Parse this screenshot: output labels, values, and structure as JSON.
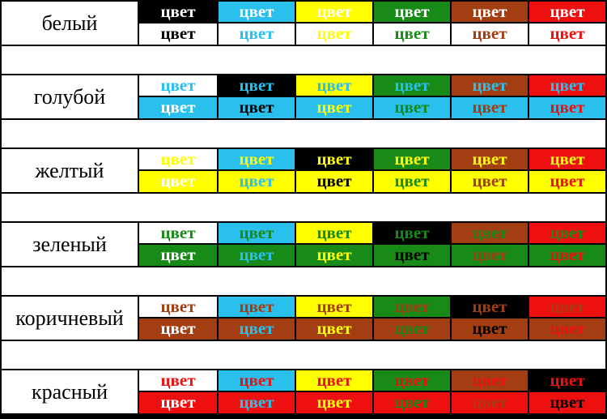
{
  "table": {
    "cell_word": "цвет",
    "palette": {
      "white": "#FFFFFF",
      "black": "#000000",
      "cyan": "#2AC0EE",
      "yellow": "#FFFF00",
      "green": "#178A17",
      "brown": "#A33E12",
      "red": "#EE1010"
    },
    "groups": [
      {
        "label": "белый",
        "color": "white",
        "columns": [
          "black",
          "cyan",
          "yellow",
          "green",
          "brown",
          "red"
        ]
      },
      {
        "label": "голубой",
        "color": "cyan",
        "columns": [
          "white",
          "black",
          "yellow",
          "green",
          "brown",
          "red"
        ]
      },
      {
        "label": "желтый",
        "color": "yellow",
        "columns": [
          "white",
          "cyan",
          "black",
          "green",
          "brown",
          "red"
        ]
      },
      {
        "label": "зеленый",
        "color": "green",
        "columns": [
          "white",
          "cyan",
          "yellow",
          "black",
          "brown",
          "red"
        ]
      },
      {
        "label": "коричневый",
        "color": "brown",
        "columns": [
          "white",
          "cyan",
          "yellow",
          "green",
          "black",
          "red"
        ]
      },
      {
        "label": "красный",
        "color": "red",
        "columns": [
          "white",
          "cyan",
          "yellow",
          "green",
          "brown",
          "black"
        ]
      }
    ]
  }
}
